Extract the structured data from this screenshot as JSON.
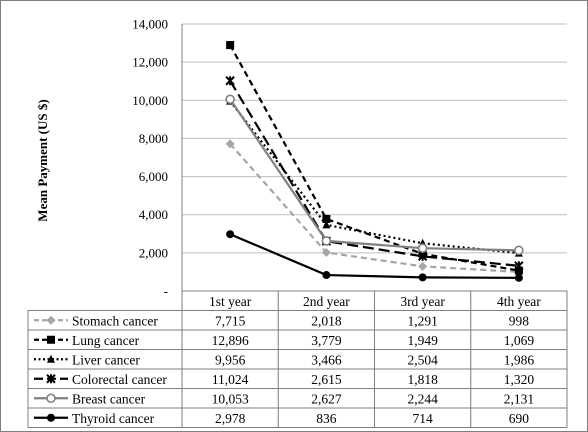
{
  "chart_data": {
    "type": "line",
    "title": "",
    "xlabel": "",
    "ylabel": "Mean Payment (US $)",
    "ylim": [
      0,
      14000
    ],
    "yticks": [
      0,
      2000,
      4000,
      6000,
      8000,
      10000,
      12000,
      14000
    ],
    "ytick_labels": [
      "-",
      "2,000",
      "4,000",
      "6,000",
      "8,000",
      "10,000",
      "12,000",
      "14,000"
    ],
    "categories": [
      "1st year",
      "2nd year",
      "3rd year",
      "4th year"
    ],
    "grid": true,
    "legend": "data-table-left",
    "series": [
      {
        "name": "Stomach cancer",
        "values": [
          7715,
          2018,
          1291,
          998
        ],
        "labels": [
          "7,715",
          "2,018",
          "1,291",
          "998"
        ],
        "color": "#a6a6a6",
        "dash": "dashed",
        "marker": "diamond"
      },
      {
        "name": "Lung cancer",
        "values": [
          12896,
          3779,
          1949,
          1069
        ],
        "labels": [
          "12,896",
          "3,779",
          "1,949",
          "1,069"
        ],
        "color": "#000000",
        "dash": "dashed",
        "marker": "square"
      },
      {
        "name": "Liver cancer",
        "values": [
          9956,
          3466,
          2504,
          1986
        ],
        "labels": [
          "9,956",
          "3,466",
          "2,504",
          "1,986"
        ],
        "color": "#000000",
        "dash": "dotted",
        "marker": "triangle"
      },
      {
        "name": "Colorectal cancer",
        "values": [
          11024,
          2615,
          1818,
          1320
        ],
        "labels": [
          "11,024",
          "2,615",
          "1,818",
          "1,320"
        ],
        "color": "#000000",
        "dash": "longdash",
        "marker": "star"
      },
      {
        "name": "Breast cancer",
        "values": [
          10053,
          2627,
          2244,
          2131
        ],
        "labels": [
          "10,053",
          "2,627",
          "2,244",
          "2,131"
        ],
        "color": "#808080",
        "dash": "solid",
        "marker": "circle-open"
      },
      {
        "name": "Thyroid cancer",
        "values": [
          2978,
          836,
          714,
          690
        ],
        "labels": [
          "2,978",
          "836",
          "714",
          "690"
        ],
        "color": "#000000",
        "dash": "solid",
        "marker": "circle"
      }
    ]
  }
}
